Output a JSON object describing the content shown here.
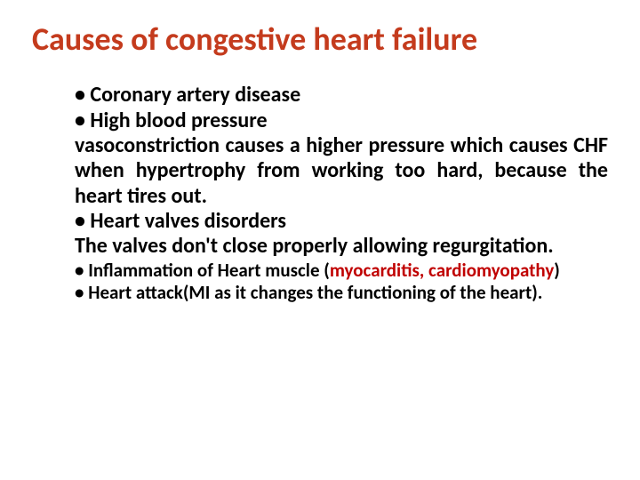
{
  "title": {
    "text": "Causes of congestive heart failure",
    "color": "#c43b1d"
  },
  "bullets": {
    "b1": "Coronary artery disease",
    "b2": "High blood pressure",
    "b2_desc": "vasoconstriction causes a higher pressure which causes CHF when hypertrophy from working too hard, because the heart tires out.",
    "b3": "Heart valves disorders",
    "b3_desc": "The valves don't close properly allowing regurgitation.",
    "b4_lead": "Inflammation of Heart muscle ",
    "b4_paren_open": "(",
    "b4_red": "myocarditis, cardiomyopathy",
    "b4_paren_close": ")",
    "b5_lead": "Heart attack",
    "b5_rest": "(MI as it changes the functioning of the heart)."
  },
  "colors": {
    "accent": "#c00000",
    "body": "#000000"
  }
}
